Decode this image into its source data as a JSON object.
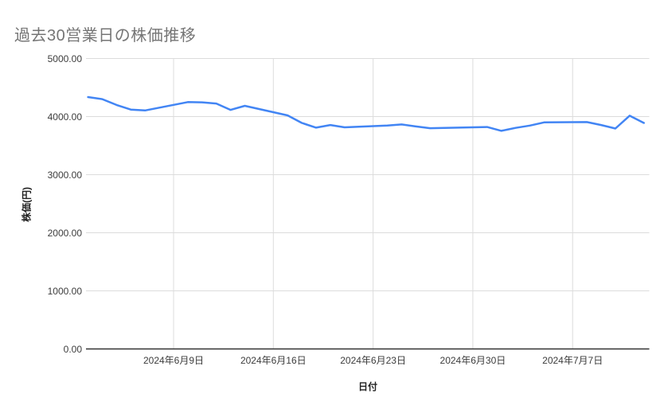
{
  "chart_data": {
    "type": "line",
    "title": "過去30営業日の株価推移",
    "xlabel": "日付",
    "ylabel": "株価(円)",
    "ylim": [
      0,
      5000
    ],
    "grid": true,
    "legend": "none",
    "y_ticks": [
      {
        "value": 5000,
        "label": "5000.00"
      },
      {
        "value": 4000,
        "label": "4000.00"
      },
      {
        "value": 3000,
        "label": "3000.00"
      },
      {
        "value": 2000,
        "label": "2000.00"
      },
      {
        "value": 1000,
        "label": "1000.00"
      },
      {
        "value": 0,
        "label": "0.00"
      }
    ],
    "x_ticks": [
      {
        "day": 6,
        "label": "2024年6月9日"
      },
      {
        "day": 13,
        "label": "2024年6月16日"
      },
      {
        "day": 20,
        "label": "2024年6月23日"
      },
      {
        "day": 27,
        "label": "2024年6月30日"
      },
      {
        "day": 34,
        "label": "2024年7月7日"
      }
    ],
    "series": [
      {
        "dates": [
          "2024年6月3日",
          "2024年6月4日",
          "2024年6月5日",
          "2024年6月6日",
          "2024年6月7日",
          "2024年6月10日",
          "2024年6月11日",
          "2024年6月12日",
          "2024年6月13日",
          "2024年6月14日",
          "2024年6月17日",
          "2024年6月18日",
          "2024年6月19日",
          "2024年6月20日",
          "2024年6月21日",
          "2024年6月24日",
          "2024年6月25日",
          "2024年6月26日",
          "2024年6月27日",
          "2024年6月28日",
          "2024年7月1日",
          "2024年7月2日",
          "2024年7月3日",
          "2024年7月4日",
          "2024年7月5日",
          "2024年7月8日",
          "2024年7月9日",
          "2024年7月10日",
          "2024年7月11日",
          "2024年7月12日"
        ],
        "day_offsets": [
          0,
          1,
          2,
          3,
          4,
          7,
          8,
          9,
          10,
          11,
          14,
          15,
          16,
          17,
          18,
          21,
          22,
          23,
          24,
          25,
          28,
          29,
          30,
          31,
          32,
          35,
          36,
          37,
          38,
          39
        ],
        "values": [
          4335,
          4300,
          4200,
          4120,
          4105,
          4250,
          4245,
          4225,
          4115,
          4185,
          4020,
          3890,
          3810,
          3855,
          3815,
          3845,
          3865,
          3830,
          3800,
          3805,
          3820,
          3755,
          3805,
          3845,
          3900,
          3905,
          3855,
          3795,
          4015,
          3890
        ]
      }
    ]
  },
  "colors": {
    "line": "#4285f4",
    "title_text": "#757575",
    "tick_text": "#3c3c3c",
    "axis_title_text": "#222222",
    "gridline": "#dcdcdc",
    "axis_line": "#333333",
    "background": "#ffffff"
  }
}
